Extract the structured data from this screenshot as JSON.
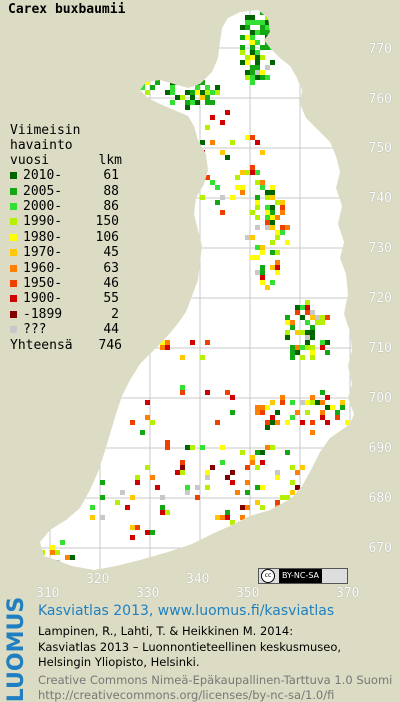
{
  "title": "Carex buxbaumii",
  "legend": {
    "header_line1": "Viimeisin",
    "header_line2": "havainto",
    "header_year": "vuosi",
    "header_count": "lkm",
    "rows": [
      {
        "year": "2010-",
        "count": "61",
        "color": "#006400"
      },
      {
        "year": "2005-",
        "count": "88",
        "color": "#13a813"
      },
      {
        "year": "2000-",
        "count": "86",
        "color": "#33e033"
      },
      {
        "year": "1990-",
        "count": "150",
        "color": "#b4f000"
      },
      {
        "year": "1980-",
        "count": "106",
        "color": "#ffff00"
      },
      {
        "year": "1970-",
        "count": "45",
        "color": "#ffc800"
      },
      {
        "year": "1960-",
        "count": "63",
        "color": "#ff8000"
      },
      {
        "year": "1950-",
        "count": "46",
        "color": "#f04000"
      },
      {
        "year": "1900-",
        "count": "55",
        "color": "#d00000"
      },
      {
        "year": "-1899",
        "count": "2",
        "color": "#800000"
      },
      {
        "year": "???",
        "count": "44",
        "color": "#c8c8c8"
      }
    ],
    "total_label": "Yhteensä",
    "total_count": "746"
  },
  "y_axis_labels": [
    "770",
    "760",
    "750",
    "740",
    "730",
    "720",
    "710",
    "700",
    "690",
    "680",
    "670"
  ],
  "x_axis_labels": [
    "310",
    "320",
    "330",
    "340",
    "350",
    "360",
    "370"
  ],
  "license_badge": {
    "cc": "cc",
    "text": "BY-NC-SA"
  },
  "footer": {
    "logo": "LUOMUS",
    "link_line": "Kasviatlas 2013, www.luomus.fi/kasviatlas",
    "citation_line1": "Lampinen, R., Lahti, T. & Heikkinen M. 2014:",
    "citation_line2": "Kasviatlas 2013 – Luonnontieteellinen keskusmuseo,",
    "citation_line3": "Helsingin Yliopisto, Helsinki.",
    "license_line1": "Creative Commons Nimeä-Epäkaupallinen-Tarttuva 1.0 Suomi",
    "license_line2": "http://creativecommons.org/licenses/by-nc-sa/1.0/fi"
  },
  "colors": {
    "land": "#ffffff",
    "background": "#dcdcc4",
    "grid": "#c9c9c9",
    "logo": "#1f7fc0"
  }
}
